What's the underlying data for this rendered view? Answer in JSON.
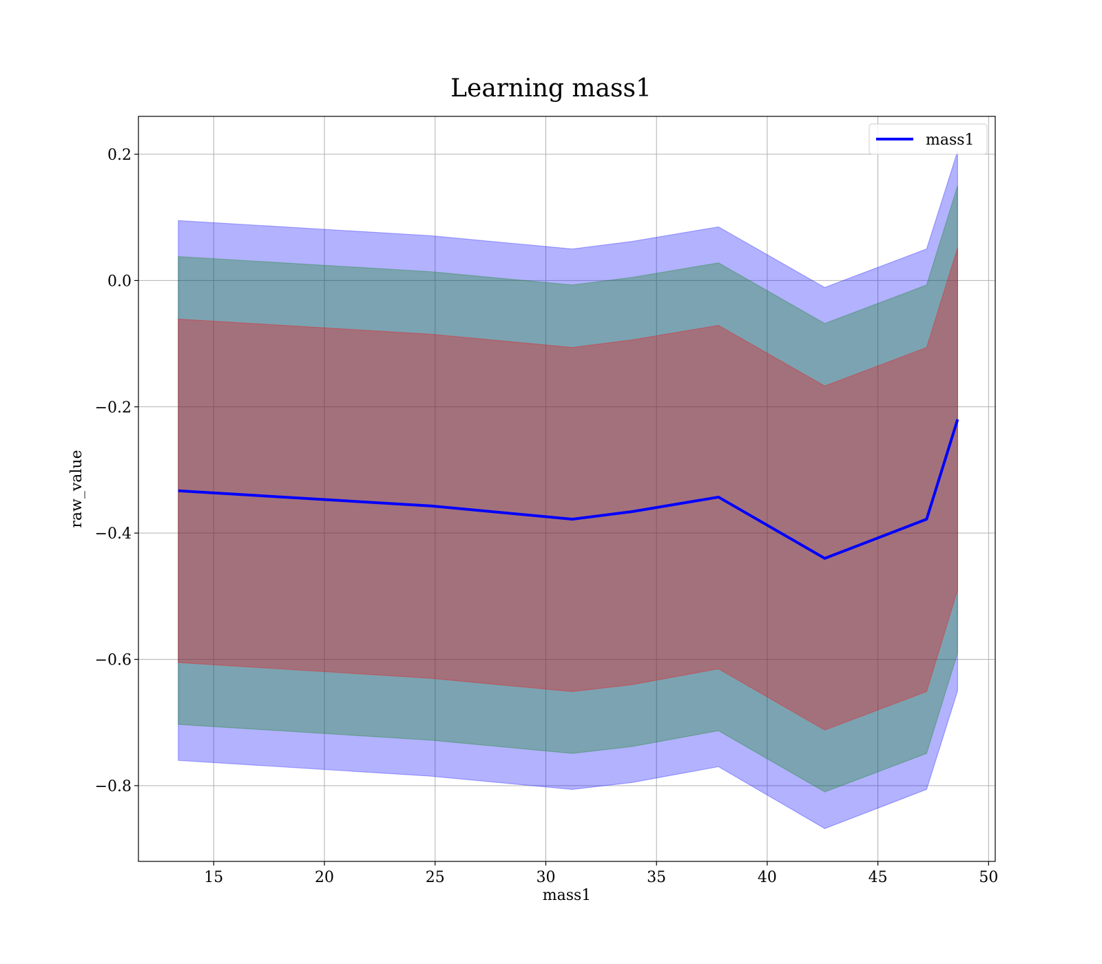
{
  "chart_data": {
    "type": "line",
    "title": "Learning mass1",
    "xlabel": "mass1",
    "ylabel": "raw_value",
    "xlim": [
      11.6,
      50.3
    ],
    "ylim": [
      -0.92,
      0.26
    ],
    "xticks": [
      15,
      20,
      25,
      30,
      35,
      40,
      45,
      50
    ],
    "yticks": [
      0.2,
      0.0,
      -0.2,
      -0.4,
      -0.6,
      -0.8
    ],
    "grid": true,
    "legend_position": "top-right",
    "x": [
      13.4,
      24.8,
      31.2,
      33.9,
      37.8,
      42.6,
      47.2,
      48.6
    ],
    "series": [
      {
        "name": "mass1",
        "color": "#0000ff",
        "values": [
          -0.333,
          -0.357,
          -0.378,
          -0.366,
          -0.343,
          -0.44,
          -0.378,
          -0.22
        ]
      }
    ],
    "bands": [
      {
        "color": "#0000ff",
        "opacity": 0.3,
        "lower": [
          -0.76,
          -0.785,
          -0.806,
          -0.795,
          -0.77,
          -0.868,
          -0.806,
          -0.65
        ],
        "upper": [
          0.095,
          0.071,
          0.05,
          0.062,
          0.085,
          -0.011,
          0.05,
          0.205
        ]
      },
      {
        "color": "#008000",
        "opacity": 0.3,
        "lower": [
          -0.703,
          -0.728,
          -0.749,
          -0.738,
          -0.713,
          -0.81,
          -0.749,
          -0.59
        ],
        "upper": [
          0.038,
          0.014,
          -0.007,
          0.005,
          0.028,
          -0.068,
          -0.007,
          0.15
        ]
      },
      {
        "color": "#ff0000",
        "opacity": 0.3,
        "lower": [
          -0.605,
          -0.63,
          -0.651,
          -0.64,
          -0.615,
          -0.712,
          -0.651,
          -0.49
        ],
        "upper": [
          -0.061,
          -0.085,
          -0.106,
          -0.094,
          -0.071,
          -0.167,
          -0.106,
          0.052
        ]
      }
    ]
  }
}
